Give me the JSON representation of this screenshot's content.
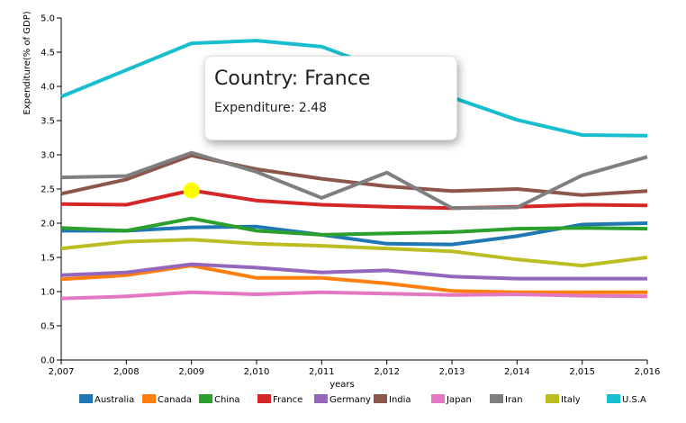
{
  "chart_data": {
    "type": "line",
    "xlabel": "years",
    "ylabel": "Expenditure(% of GDP)",
    "x": [
      2007,
      2008,
      2009,
      2010,
      2011,
      2012,
      2013,
      2014,
      2015,
      2016
    ],
    "x_tick_labels": [
      "2,007",
      "2,008",
      "2,009",
      "2,010",
      "2,011",
      "2,012",
      "2,013",
      "2,014",
      "2,015",
      "2,016"
    ],
    "ylim": [
      0,
      5
    ],
    "y_ticks": [
      "0.0",
      "0.5",
      "1.0",
      "1.5",
      "2.0",
      "2.5",
      "3.0",
      "3.5",
      "4.0",
      "4.5",
      "5.0"
    ],
    "grid": false,
    "legend_position": "bottom",
    "series": [
      {
        "name": "Australia",
        "color": "#1f77b4",
        "values": [
          1.89,
          1.89,
          1.94,
          1.95,
          1.83,
          1.7,
          1.69,
          1.81,
          1.98,
          2.0
        ]
      },
      {
        "name": "Canada",
        "color": "#ff7f0e",
        "values": [
          1.18,
          1.24,
          1.38,
          1.2,
          1.2,
          1.12,
          1.01,
          0.99,
          0.99,
          0.99
        ]
      },
      {
        "name": "China",
        "color": "#2ca02c",
        "values": [
          1.93,
          1.89,
          2.07,
          1.89,
          1.83,
          1.85,
          1.87,
          1.92,
          1.93,
          1.92
        ]
      },
      {
        "name": "France",
        "color": "#d62728",
        "values": [
          2.28,
          2.27,
          2.48,
          2.33,
          2.27,
          2.24,
          2.22,
          2.24,
          2.27,
          2.26
        ]
      },
      {
        "name": "Germany",
        "color": "#9467bd",
        "values": [
          1.24,
          1.28,
          1.4,
          1.35,
          1.28,
          1.31,
          1.22,
          1.19,
          1.19,
          1.19
        ]
      },
      {
        "name": "India",
        "color": "#8c564b",
        "values": [
          2.43,
          2.64,
          2.99,
          2.79,
          2.65,
          2.54,
          2.47,
          2.5,
          2.41,
          2.47
        ]
      },
      {
        "name": "Japan",
        "color": "#e377c2",
        "values": [
          0.9,
          0.93,
          0.99,
          0.96,
          0.99,
          0.97,
          0.95,
          0.96,
          0.94,
          0.93
        ]
      },
      {
        "name": "Iran",
        "color": "#7f7f7f",
        "values": [
          2.67,
          2.69,
          3.03,
          2.75,
          2.37,
          2.74,
          2.22,
          2.23,
          2.7,
          2.97
        ]
      },
      {
        "name": "Italy",
        "color": "#bcbd22",
        "values": [
          1.63,
          1.73,
          1.76,
          1.7,
          1.67,
          1.63,
          1.59,
          1.47,
          1.38,
          1.5
        ]
      },
      {
        "name": "U.S.A",
        "color": "#17becf",
        "values": [
          3.85,
          4.24,
          4.63,
          4.67,
          4.58,
          4.23,
          3.84,
          3.51,
          3.29,
          3.28
        ]
      }
    ],
    "highlight": {
      "series": "France",
      "x": 2009,
      "value": 2.48,
      "marker_color": "#ffff00"
    }
  },
  "tooltip": {
    "title": "Country: France",
    "row": "Expenditure: 2.48"
  }
}
